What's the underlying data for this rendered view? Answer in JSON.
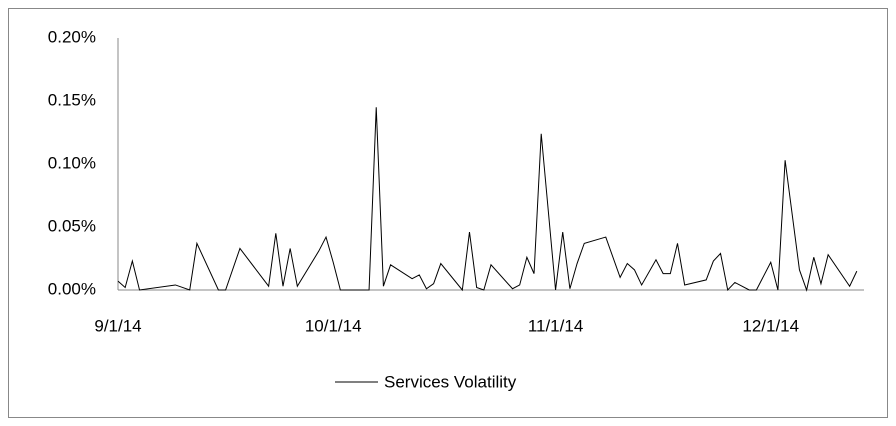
{
  "chart_data": {
    "type": "line",
    "x": [
      "2014-09-01",
      "2014-09-02",
      "2014-09-03",
      "2014-09-04",
      "2014-09-09",
      "2014-09-11",
      "2014-09-12",
      "2014-09-15",
      "2014-09-16",
      "2014-09-18",
      "2014-09-22",
      "2014-09-23",
      "2014-09-24",
      "2014-09-25",
      "2014-09-26",
      "2014-09-29",
      "2014-09-30",
      "2014-10-01",
      "2014-10-02",
      "2014-10-06",
      "2014-10-07",
      "2014-10-08",
      "2014-10-09",
      "2014-10-12",
      "2014-10-13",
      "2014-10-14",
      "2014-10-15",
      "2014-10-16",
      "2014-10-19",
      "2014-10-20",
      "2014-10-21",
      "2014-10-22",
      "2014-10-23",
      "2014-10-26",
      "2014-10-27",
      "2014-10-28",
      "2014-10-29",
      "2014-10-30",
      "2014-11-01",
      "2014-11-02",
      "2014-11-03",
      "2014-11-04",
      "2014-11-05",
      "2014-11-08",
      "2014-11-10",
      "2014-11-11",
      "2014-11-12",
      "2014-11-13",
      "2014-11-15",
      "2014-11-16",
      "2014-11-17",
      "2014-11-18",
      "2014-11-19",
      "2014-11-22",
      "2014-11-23",
      "2014-11-24",
      "2014-11-25",
      "2014-11-26",
      "2014-11-28",
      "2014-11-29",
      "2014-12-01",
      "2014-12-02",
      "2014-12-03",
      "2014-12-05",
      "2014-12-06",
      "2014-12-07",
      "2014-12-08",
      "2014-12-09",
      "2014-12-12",
      "2014-12-13"
    ],
    "series": [
      {
        "name": "Services Volatility",
        "color": "#000000",
        "values": [
          0.007,
          0.002,
          0.023,
          0,
          0.004,
          0,
          0.037,
          0,
          0,
          0.033,
          0.003,
          0.045,
          0.003,
          0.033,
          0.003,
          0.031,
          0.042,
          0.022,
          0,
          0,
          0.145,
          0.003,
          0.02,
          0.009,
          0.012,
          0.001,
          0.005,
          0.021,
          0,
          0.046,
          0.002,
          0,
          0.02,
          0.001,
          0.004,
          0.026,
          0.013,
          0.124,
          0,
          0.046,
          0.001,
          0.021,
          0.037,
          0.042,
          0.01,
          0.021,
          0.016,
          0.004,
          0.024,
          0.013,
          0.013,
          0.037,
          0.004,
          0.008,
          0.023,
          0.029,
          0,
          0.006,
          0,
          0,
          0.022,
          0,
          0.103,
          0.016,
          0,
          0.026,
          0.005,
          0.028,
          0.003,
          0.015
        ]
      }
    ],
    "xlim": [
      "2014-09-01",
      "2014-12-14"
    ],
    "xticks": [
      {
        "value": "2014-09-01",
        "label": "9/1/14"
      },
      {
        "value": "2014-10-01",
        "label": "10/1/14"
      },
      {
        "value": "2014-11-01",
        "label": "11/1/14"
      },
      {
        "value": "2014-12-01",
        "label": "12/1/14"
      }
    ],
    "ylim": [
      0,
      0.2
    ],
    "yticks": [
      {
        "value": 0,
        "label": "0.00%"
      },
      {
        "value": 0.05,
        "label": "0.05%"
      },
      {
        "value": 0.1,
        "label": "0.10%"
      },
      {
        "value": 0.15,
        "label": "0.15%"
      },
      {
        "value": 0.2,
        "label": "0.20%"
      }
    ],
    "grid": false,
    "legend": "bottom"
  }
}
